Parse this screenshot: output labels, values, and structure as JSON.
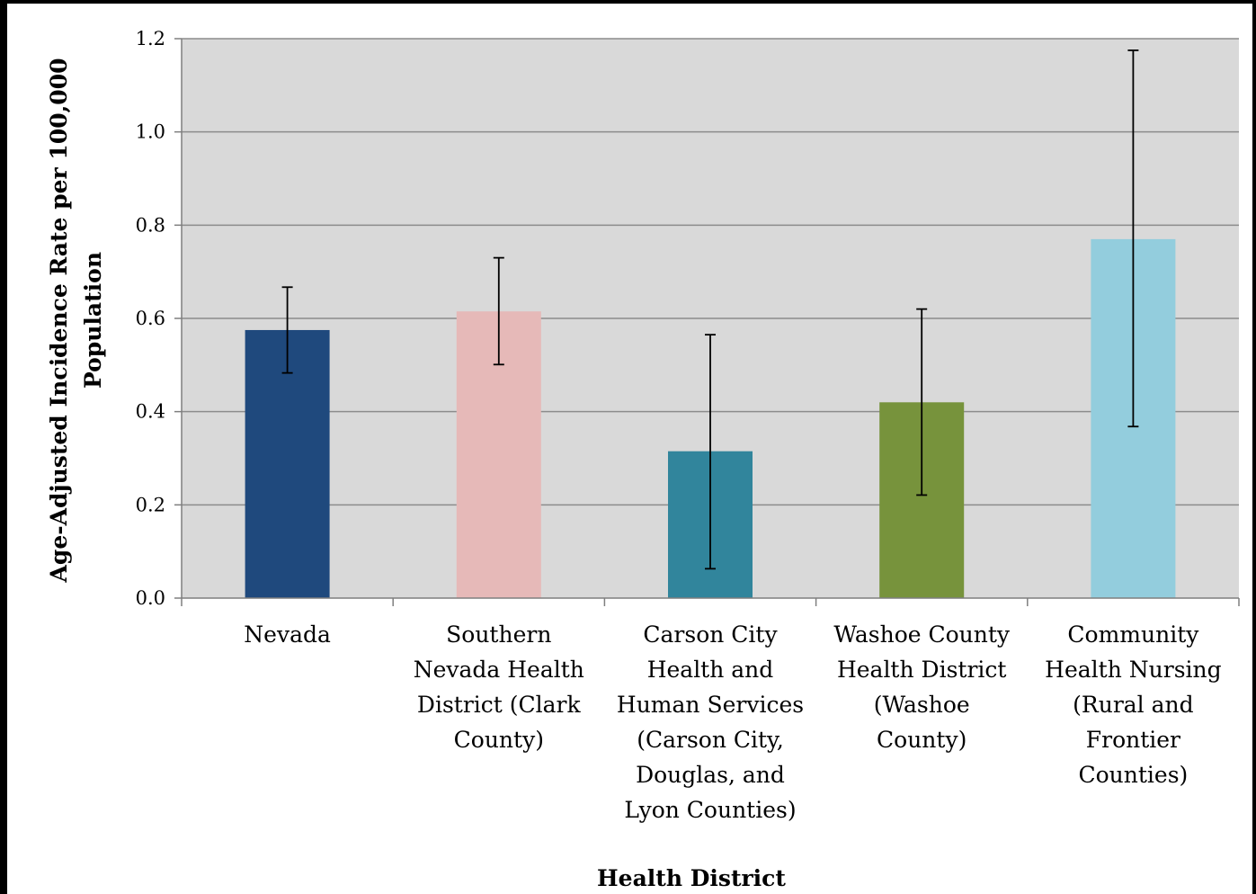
{
  "chart_data": {
    "type": "bar",
    "title": "",
    "xlabel": "Health District",
    "ylabel_lines": [
      "Age-Adjusted Incidence Rate per 100,000",
      "Population"
    ],
    "ylim": [
      0,
      1.2
    ],
    "yticks": [
      "0.0",
      "0.2",
      "0.4",
      "0.6",
      "0.8",
      "1.0",
      "1.2"
    ],
    "yticks_values": [
      0,
      0.2,
      0.4,
      0.6,
      0.8,
      1.0,
      1.2
    ],
    "grid": true,
    "legend": "none",
    "plot_background": "#d9d9d9",
    "categories": [
      {
        "lines": [
          "Nevada"
        ]
      },
      {
        "lines": [
          "Southern",
          "Nevada Health",
          "District (Clark",
          "County)"
        ]
      },
      {
        "lines": [
          "Carson City",
          "Health and",
          "Human Services",
          "(Carson City,",
          "Douglas, and",
          "Lyon Counties)"
        ]
      },
      {
        "lines": [
          "Washoe County",
          "Health District",
          "(Washoe",
          "County)"
        ]
      },
      {
        "lines": [
          "Community",
          "Health Nursing",
          "(Rural and",
          "Frontier",
          "Counties)"
        ]
      }
    ],
    "values": [
      0.575,
      0.615,
      0.315,
      0.42,
      0.77
    ],
    "error_low": [
      0.483,
      0.501,
      0.063,
      0.221,
      0.368
    ],
    "error_high": [
      0.667,
      0.73,
      0.565,
      0.62,
      1.175
    ],
    "colors": [
      "#1f497d",
      "#e6b9b8",
      "#31859c",
      "#77933c",
      "#93cddd"
    ]
  }
}
